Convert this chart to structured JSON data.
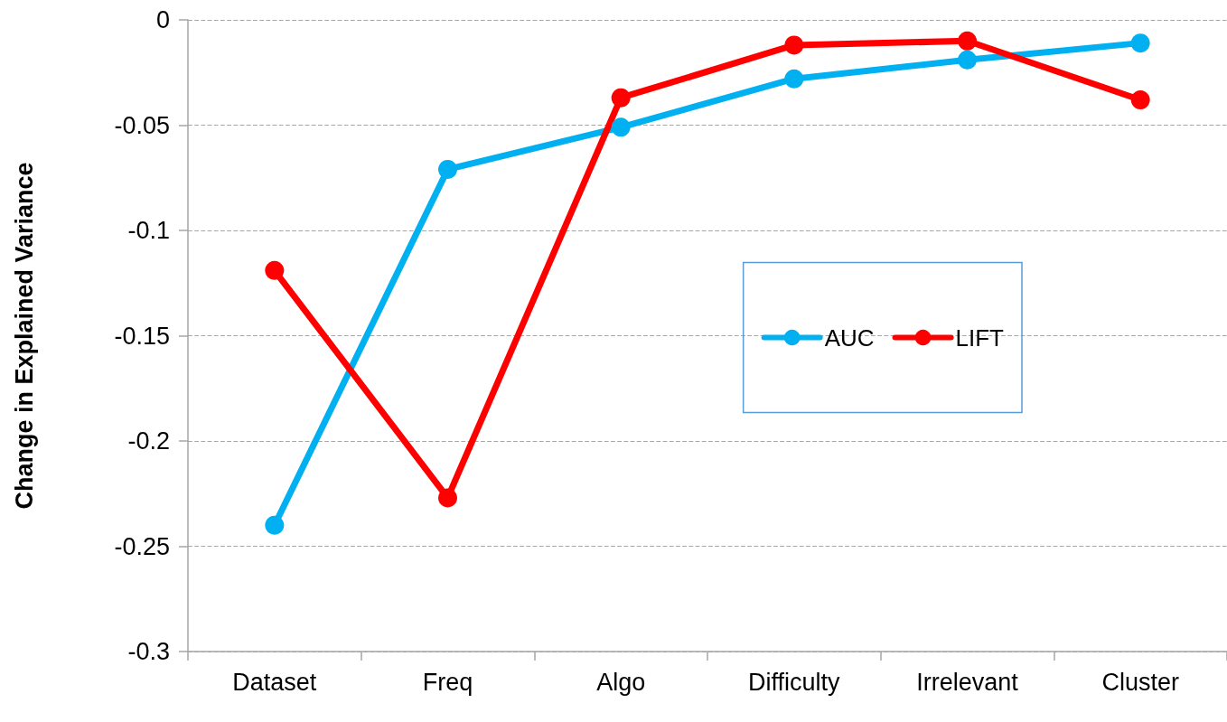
{
  "chart_data": {
    "type": "line",
    "ylabel": "Change in Explained Variance",
    "categories": [
      "Dataset",
      "Freq",
      "Algo",
      "Difficulty",
      "Irrelevant",
      "Cluster"
    ],
    "series": [
      {
        "name": "AUC",
        "color": "#00b0f0",
        "values": [
          -0.24,
          -0.071,
          -0.051,
          -0.028,
          -0.019,
          -0.011
        ]
      },
      {
        "name": "LIFT",
        "color": "#ff0000",
        "values": [
          -0.119,
          -0.227,
          -0.037,
          -0.012,
          -0.01,
          -0.038
        ]
      }
    ],
    "ylim": [
      -0.3,
      0
    ],
    "yticks": [
      -0.3,
      -0.25,
      -0.2,
      -0.15,
      -0.1,
      -0.05,
      0
    ],
    "grid": "y",
    "legend": "right",
    "marker": "circle",
    "line_style": "solid"
  }
}
